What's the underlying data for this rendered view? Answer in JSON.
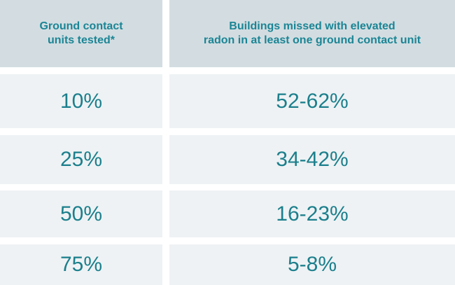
{
  "table": {
    "headers": [
      "Ground contact\nunits tested*",
      "Buildings missed with elevated\nradon in at least one ground contact unit"
    ],
    "rows": [
      [
        "10%",
        "52-62%"
      ],
      [
        "25%",
        "34-42%"
      ],
      [
        "50%",
        "16-23%"
      ],
      [
        "75%",
        "5-8%"
      ]
    ]
  },
  "colors": {
    "header_bg": "#d3dde1",
    "row_bg": "#eef2f4",
    "text": "#1b7f8c"
  }
}
